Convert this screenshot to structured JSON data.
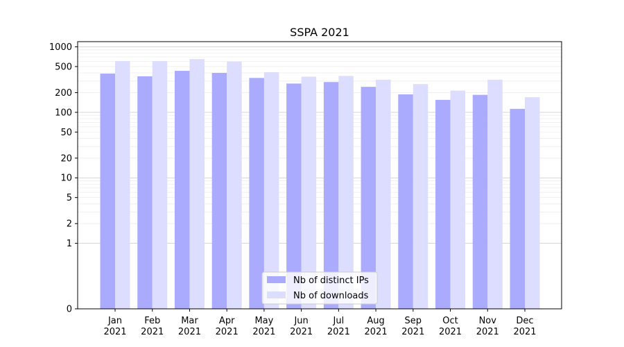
{
  "chart_data": {
    "type": "bar",
    "title": "SSPA 2021",
    "xlabel": "",
    "ylabel": "",
    "yscale": "symlog",
    "ylim": [
      0,
      1200
    ],
    "y_ticks": [
      "0",
      "1",
      "2",
      "5",
      "10",
      "20",
      "50",
      "100",
      "200",
      "500",
      "1000"
    ],
    "y_tick_values": [
      0,
      1,
      2,
      5,
      10,
      20,
      50,
      100,
      200,
      500,
      1000
    ],
    "grid": true,
    "legend_position": "bottom-center",
    "categories": [
      "Jan\n2021",
      "Feb\n2021",
      "Mar\n2021",
      "Apr\n2021",
      "May\n2021",
      "Jun\n2021",
      "Jul\n2021",
      "Aug\n2021",
      "Sep\n2021",
      "Oct\n2021",
      "Nov\n2021",
      "Dec\n2021"
    ],
    "category_months": [
      "Jan",
      "Feb",
      "Mar",
      "Apr",
      "May",
      "Jun",
      "Jul",
      "Aug",
      "Sep",
      "Oct",
      "Nov",
      "Dec"
    ],
    "category_years": [
      "2021",
      "2021",
      "2021",
      "2021",
      "2021",
      "2021",
      "2021",
      "2021",
      "2021",
      "2021",
      "2021",
      "2021"
    ],
    "series": [
      {
        "name": "Nb of distinct IPs",
        "color": "#aaaaff",
        "values": [
          390,
          355,
          430,
          400,
          335,
          275,
          290,
          245,
          188,
          155,
          185,
          113
        ]
      },
      {
        "name": "Nb of downloads",
        "color": "#ddddff",
        "values": [
          605,
          605,
          650,
          595,
          410,
          350,
          360,
          315,
          270,
          215,
          315,
          170
        ]
      }
    ]
  }
}
